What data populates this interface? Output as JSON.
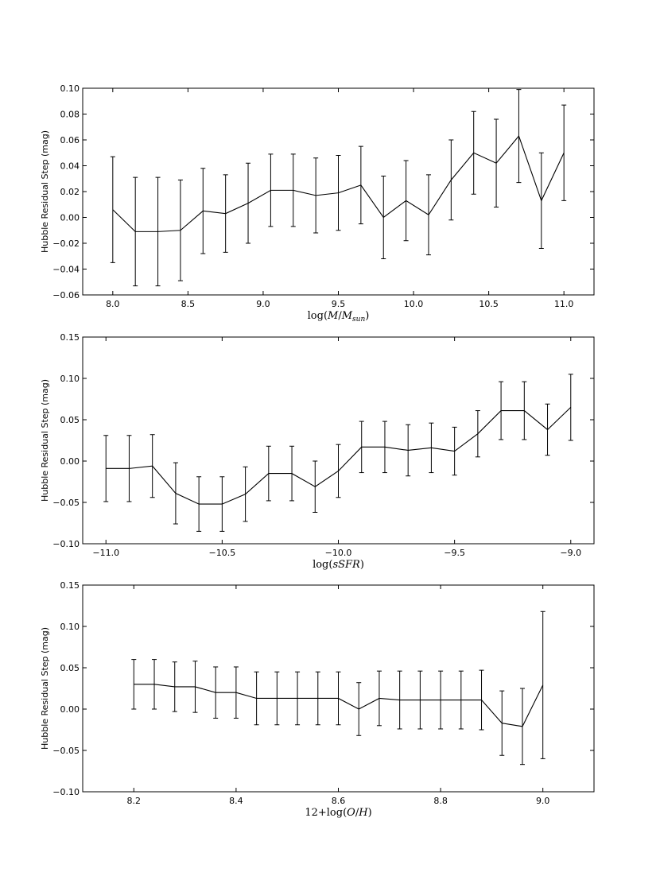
{
  "chart_data": [
    {
      "type": "line",
      "title": "",
      "ylabel": "Hubble Residual Step (mag)",
      "xlabel_parts": [
        {
          "t": "log(",
          "i": false
        },
        {
          "t": "M",
          "i": true
        },
        {
          "t": "/",
          "i": false
        },
        {
          "t": "M",
          "i": true
        },
        {
          "t": "sun",
          "i": true,
          "sub": true
        },
        {
          "t": ")",
          "i": false
        }
      ],
      "xlim": [
        7.8,
        11.2
      ],
      "ylim": [
        -0.06,
        0.1
      ],
      "xticks": [
        8.0,
        8.5,
        9.0,
        9.5,
        10.0,
        10.5,
        11.0
      ],
      "xtick_labels": [
        "8.0",
        "8.5",
        "9.0",
        "9.5",
        "10.0",
        "10.5",
        "11.0"
      ],
      "yticks": [
        -0.06,
        -0.04,
        -0.02,
        0.0,
        0.02,
        0.04,
        0.06,
        0.08,
        0.1
      ],
      "ytick_labels": [
        "−0.06",
        "−0.04",
        "−0.02",
        "0.00",
        "0.02",
        "0.04",
        "0.06",
        "0.08",
        "0.10"
      ],
      "x": [
        8.0,
        8.15,
        8.3,
        8.45,
        8.6,
        8.75,
        8.9,
        9.05,
        9.2,
        9.35,
        9.5,
        9.65,
        9.8,
        9.95,
        10.1,
        10.25,
        10.4,
        10.55,
        10.7,
        10.85,
        11.0
      ],
      "y": [
        0.006,
        -0.011,
        -0.011,
        -0.01,
        0.005,
        0.003,
        0.011,
        0.021,
        0.021,
        0.017,
        0.019,
        0.025,
        0.0,
        0.013,
        0.002,
        0.029,
        0.05,
        0.042,
        0.063,
        0.013,
        0.05
      ],
      "yerr": [
        0.041,
        0.042,
        0.042,
        0.039,
        0.033,
        0.03,
        0.031,
        0.028,
        0.028,
        0.029,
        0.029,
        0.03,
        0.032,
        0.031,
        0.031,
        0.031,
        0.032,
        0.034,
        0.036,
        0.037,
        0.037
      ]
    },
    {
      "type": "line",
      "title": "",
      "ylabel": "Hubble Residual Step (mag)",
      "xlabel_parts": [
        {
          "t": "log(",
          "i": false
        },
        {
          "t": "sSFR",
          "i": true
        },
        {
          "t": ")",
          "i": false
        }
      ],
      "xlim": [
        -11.1,
        -8.9
      ],
      "ylim": [
        -0.1,
        0.15
      ],
      "xticks": [
        -11.0,
        -10.5,
        -10.0,
        -9.5,
        -9.0
      ],
      "xtick_labels": [
        "−11.0",
        "−10.5",
        "−10.0",
        "−9.5",
        "−9.0"
      ],
      "yticks": [
        -0.1,
        -0.05,
        0.0,
        0.05,
        0.1,
        0.15
      ],
      "ytick_labels": [
        "−0.10",
        "−0.05",
        "0.00",
        "0.05",
        "0.10",
        "0.15"
      ],
      "x": [
        -11.0,
        -10.9,
        -10.8,
        -10.7,
        -10.6,
        -10.5,
        -10.4,
        -10.3,
        -10.2,
        -10.1,
        -10.0,
        -9.9,
        -9.8,
        -9.7,
        -9.6,
        -9.5,
        -9.4,
        -9.3,
        -9.2,
        -9.1,
        -9.0
      ],
      "y": [
        -0.009,
        -0.009,
        -0.006,
        -0.039,
        -0.052,
        -0.052,
        -0.04,
        -0.015,
        -0.015,
        -0.031,
        -0.012,
        0.017,
        0.017,
        0.013,
        0.016,
        0.012,
        0.033,
        0.061,
        0.061,
        0.038,
        0.065
      ],
      "yerr": [
        0.04,
        0.04,
        0.038,
        0.037,
        0.033,
        0.033,
        0.033,
        0.033,
        0.033,
        0.031,
        0.032,
        0.031,
        0.031,
        0.031,
        0.03,
        0.029,
        0.028,
        0.035,
        0.035,
        0.031,
        0.04
      ]
    },
    {
      "type": "line",
      "title": "",
      "ylabel": "Hubble Residual Step (mag)",
      "xlabel_parts": [
        {
          "t": "12+log(",
          "i": false
        },
        {
          "t": "O",
          "i": true
        },
        {
          "t": "/",
          "i": false
        },
        {
          "t": "H",
          "i": true
        },
        {
          "t": ")",
          "i": false
        }
      ],
      "xlim": [
        8.1,
        9.1
      ],
      "ylim": [
        -0.1,
        0.15
      ],
      "xticks": [
        8.2,
        8.4,
        8.6,
        8.8,
        9.0
      ],
      "xtick_labels": [
        "8.2",
        "8.4",
        "8.6",
        "8.8",
        "9.0"
      ],
      "yticks": [
        -0.1,
        -0.05,
        0.0,
        0.05,
        0.1,
        0.15
      ],
      "ytick_labels": [
        "−0.10",
        "−0.05",
        "0.00",
        "0.05",
        "0.10",
        "0.15"
      ],
      "x": [
        8.2,
        8.24,
        8.28,
        8.32,
        8.36,
        8.4,
        8.44,
        8.48,
        8.52,
        8.56,
        8.6,
        8.64,
        8.68,
        8.72,
        8.76,
        8.8,
        8.84,
        8.88,
        8.92,
        8.96,
        9.0
      ],
      "y": [
        0.03,
        0.03,
        0.027,
        0.027,
        0.02,
        0.02,
        0.013,
        0.013,
        0.013,
        0.013,
        0.013,
        0.0,
        0.013,
        0.011,
        0.011,
        0.011,
        0.011,
        0.011,
        -0.017,
        -0.021,
        0.029
      ],
      "yerr": [
        0.03,
        0.03,
        0.03,
        0.031,
        0.031,
        0.031,
        0.032,
        0.032,
        0.032,
        0.032,
        0.032,
        0.032,
        0.033,
        0.035,
        0.035,
        0.035,
        0.035,
        0.036,
        0.039,
        0.046,
        0.089
      ]
    }
  ]
}
